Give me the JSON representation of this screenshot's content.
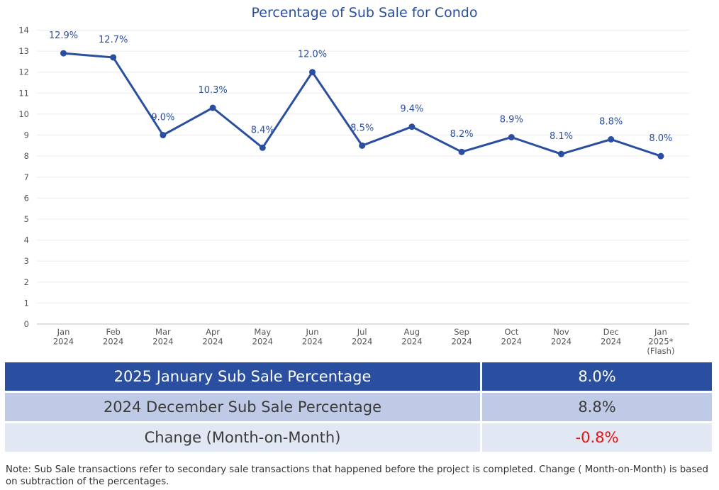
{
  "chart_data": {
    "type": "line",
    "title": "Percentage of Sub Sale for Condo",
    "categories": [
      [
        "Jan",
        "2024"
      ],
      [
        "Feb",
        "2024"
      ],
      [
        "Mar",
        "2024"
      ],
      [
        "Apr",
        "2024"
      ],
      [
        "May",
        "2024"
      ],
      [
        "Jun",
        "2024"
      ],
      [
        "Jul",
        "2024"
      ],
      [
        "Aug",
        "2024"
      ],
      [
        "Sep",
        "2024"
      ],
      [
        "Oct",
        "2024"
      ],
      [
        "Nov",
        "2024"
      ],
      [
        "Dec",
        "2024"
      ],
      [
        "Jan",
        "2025*",
        "(Flash)"
      ]
    ],
    "values": [
      12.9,
      12.7,
      9.0,
      10.3,
      8.4,
      12.0,
      8.5,
      9.4,
      8.2,
      8.9,
      8.1,
      8.8,
      8.0
    ],
    "data_labels": [
      "12.9%",
      "12.7%",
      "9.0%",
      "10.3%",
      "8.4%",
      "12.0%",
      "8.5%",
      "9.4%",
      "8.2%",
      "8.9%",
      "8.1%",
      "8.8%",
      "8.0%"
    ],
    "ylim": [
      0,
      14
    ],
    "yticks": [
      0,
      1,
      2,
      3,
      4,
      5,
      6,
      7,
      8,
      9,
      10,
      11,
      12,
      13,
      14
    ],
    "xlabel": "",
    "ylabel": "",
    "grid": true,
    "legend": "none",
    "line_color": "#2a4fa0"
  },
  "summary": {
    "rows": [
      {
        "label": "2025 January Sub Sale Percentage",
        "value": "8.0%"
      },
      {
        "label": "2024 December Sub Sale Percentage",
        "value": "8.8%"
      },
      {
        "label": "Change (Month-on-Month)",
        "value": "-0.8%"
      }
    ],
    "colors": {
      "header": "#2a4fa0",
      "row2": "#bfcbe6",
      "row3": "#e2e7f4",
      "negative": "#ee1111"
    }
  },
  "note": "Note: Sub Sale transactions refer to secondary sale transactions that happened before the project is completed. Change ( Month-on-Month) is based on subtraction of the percentages."
}
